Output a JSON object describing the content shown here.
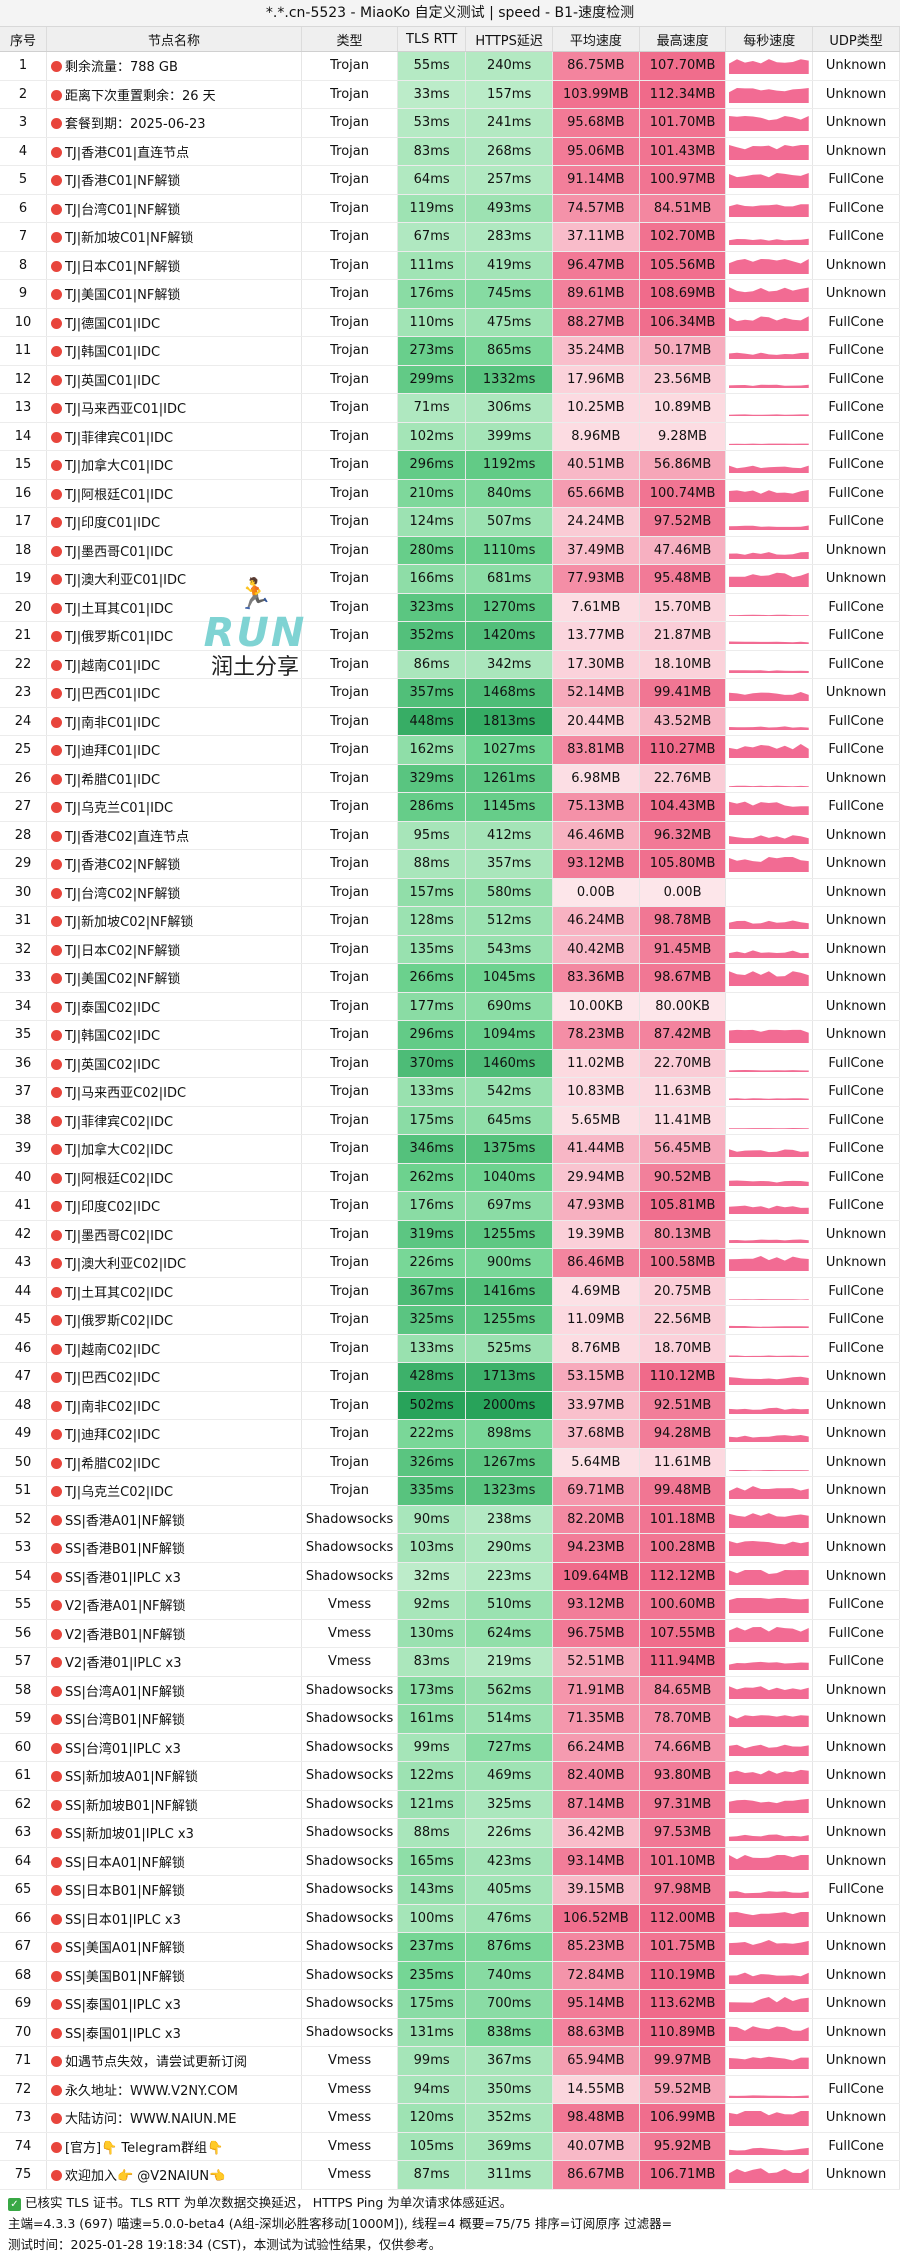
{
  "title": "*.*.cn-5523 - MiaoKo 自定义测试 | speed - B1-速度检测",
  "headers": [
    "序号",
    "节点名称",
    "类型",
    "TLS RTT",
    "HTTPS延迟",
    "平均速度",
    "最高速度",
    "每秒速度",
    "UDP类型"
  ],
  "colors": {
    "flag": "#e8453c",
    "ms_light": "#c8f0d2",
    "ms_mid": "#70d491",
    "ms_dark": "#28a35a",
    "spd_light": "#fde6ea",
    "spd_dark": "#f06a8a",
    "wave": "#f26b93"
  },
  "chart_data": {
    "type": "table",
    "columns": [
      "序号",
      "节点名称",
      "类型",
      "TLS RTT",
      "HTTPS延迟",
      "平均速度",
      "最高速度",
      "UDP类型"
    ],
    "rows": [
      [
        "1",
        "剩余流量：788 GB",
        "Trojan",
        "55ms",
        "240ms",
        "86.75MB",
        "107.70MB",
        "Unknown"
      ],
      [
        "2",
        "距离下次重置剩余：26 天",
        "Trojan",
        "33ms",
        "157ms",
        "103.99MB",
        "112.34MB",
        "Unknown"
      ],
      [
        "3",
        "套餐到期：2025-06-23",
        "Trojan",
        "53ms",
        "241ms",
        "95.68MB",
        "101.70MB",
        "Unknown"
      ],
      [
        "4",
        "TJ|香港C01|直连节点",
        "Trojan",
        "83ms",
        "268ms",
        "95.06MB",
        "101.43MB",
        "Unknown"
      ],
      [
        "5",
        "TJ|香港C01|NF解锁",
        "Trojan",
        "64ms",
        "257ms",
        "91.14MB",
        "100.97MB",
        "FullCone"
      ],
      [
        "6",
        "TJ|台湾C01|NF解锁",
        "Trojan",
        "119ms",
        "493ms",
        "74.57MB",
        "84.51MB",
        "FullCone"
      ],
      [
        "7",
        "TJ|新加坡C01|NF解锁",
        "Trojan",
        "67ms",
        "283ms",
        "37.11MB",
        "102.70MB",
        "FullCone"
      ],
      [
        "8",
        "TJ|日本C01|NF解锁",
        "Trojan",
        "111ms",
        "419ms",
        "96.47MB",
        "105.56MB",
        "Unknown"
      ],
      [
        "9",
        "TJ|美国C01|NF解锁",
        "Trojan",
        "176ms",
        "745ms",
        "89.61MB",
        "108.69MB",
        "Unknown"
      ],
      [
        "10",
        "TJ|德国C01|IDC",
        "Trojan",
        "110ms",
        "475ms",
        "88.27MB",
        "106.34MB",
        "FullCone"
      ],
      [
        "11",
        "TJ|韩国C01|IDC",
        "Trojan",
        "273ms",
        "865ms",
        "35.24MB",
        "50.17MB",
        "FullCone"
      ],
      [
        "12",
        "TJ|英国C01|IDC",
        "Trojan",
        "299ms",
        "1332ms",
        "17.96MB",
        "23.56MB",
        "FullCone"
      ],
      [
        "13",
        "TJ|马来西亚C01|IDC",
        "Trojan",
        "71ms",
        "306ms",
        "10.25MB",
        "10.89MB",
        "FullCone"
      ],
      [
        "14",
        "TJ|菲律宾C01|IDC",
        "Trojan",
        "102ms",
        "399ms",
        "8.96MB",
        "9.28MB",
        "FullCone"
      ],
      [
        "15",
        "TJ|加拿大C01|IDC",
        "Trojan",
        "296ms",
        "1192ms",
        "40.51MB",
        "56.86MB",
        "FullCone"
      ],
      [
        "16",
        "TJ|阿根廷C01|IDC",
        "Trojan",
        "210ms",
        "840ms",
        "65.66MB",
        "100.74MB",
        "FullCone"
      ],
      [
        "17",
        "TJ|印度C01|IDC",
        "Trojan",
        "124ms",
        "507ms",
        "24.24MB",
        "97.52MB",
        "FullCone"
      ],
      [
        "18",
        "TJ|墨西哥C01|IDC",
        "Trojan",
        "280ms",
        "1110ms",
        "37.49MB",
        "47.46MB",
        "Unknown"
      ],
      [
        "19",
        "TJ|澳大利亚C01|IDC",
        "Trojan",
        "166ms",
        "681ms",
        "77.93MB",
        "95.48MB",
        "Unknown"
      ],
      [
        "20",
        "TJ|土耳其C01|IDC",
        "Trojan",
        "323ms",
        "1270ms",
        "7.61MB",
        "15.70MB",
        "FullCone"
      ],
      [
        "21",
        "TJ|俄罗斯C01|IDC",
        "Trojan",
        "352ms",
        "1420ms",
        "13.77MB",
        "21.87MB",
        "FullCone"
      ],
      [
        "22",
        "TJ|越南C01|IDC",
        "Trojan",
        "86ms",
        "342ms",
        "17.30MB",
        "18.10MB",
        "FullCone"
      ],
      [
        "23",
        "TJ|巴西C01|IDC",
        "Trojan",
        "357ms",
        "1468ms",
        "52.14MB",
        "99.41MB",
        "Unknown"
      ],
      [
        "24",
        "TJ|南非C01|IDC",
        "Trojan",
        "448ms",
        "1813ms",
        "20.44MB",
        "43.52MB",
        "FullCone"
      ],
      [
        "25",
        "TJ|迪拜C01|IDC",
        "Trojan",
        "162ms",
        "1027ms",
        "83.81MB",
        "110.27MB",
        "FullCone"
      ],
      [
        "26",
        "TJ|希腊C01|IDC",
        "Trojan",
        "329ms",
        "1261ms",
        "6.98MB",
        "22.76MB",
        "Unknown"
      ],
      [
        "27",
        "TJ|乌克兰C01|IDC",
        "Trojan",
        "286ms",
        "1145ms",
        "75.13MB",
        "104.43MB",
        "FullCone"
      ],
      [
        "28",
        "TJ|香港C02|直连节点",
        "Trojan",
        "95ms",
        "412ms",
        "46.46MB",
        "96.32MB",
        "Unknown"
      ],
      [
        "29",
        "TJ|香港C02|NF解锁",
        "Trojan",
        "88ms",
        "357ms",
        "93.12MB",
        "105.80MB",
        "Unknown"
      ],
      [
        "30",
        "TJ|台湾C02|NF解锁",
        "Trojan",
        "157ms",
        "580ms",
        "0.00B",
        "0.00B",
        "Unknown"
      ],
      [
        "31",
        "TJ|新加坡C02|NF解锁",
        "Trojan",
        "128ms",
        "512ms",
        "46.24MB",
        "98.78MB",
        "Unknown"
      ],
      [
        "32",
        "TJ|日本C02|NF解锁",
        "Trojan",
        "135ms",
        "543ms",
        "40.42MB",
        "91.45MB",
        "Unknown"
      ],
      [
        "33",
        "TJ|美国C02|NF解锁",
        "Trojan",
        "266ms",
        "1045ms",
        "83.36MB",
        "98.67MB",
        "Unknown"
      ],
      [
        "34",
        "TJ|泰国C02|IDC",
        "Trojan",
        "177ms",
        "690ms",
        "10.00KB",
        "80.00KB",
        "Unknown"
      ],
      [
        "35",
        "TJ|韩国C02|IDC",
        "Trojan",
        "296ms",
        "1094ms",
        "78.23MB",
        "87.42MB",
        "Unknown"
      ],
      [
        "36",
        "TJ|英国C02|IDC",
        "Trojan",
        "370ms",
        "1460ms",
        "11.02MB",
        "22.70MB",
        "FullCone"
      ],
      [
        "37",
        "TJ|马来西亚C02|IDC",
        "Trojan",
        "133ms",
        "542ms",
        "10.83MB",
        "11.63MB",
        "FullCone"
      ],
      [
        "38",
        "TJ|菲律宾C02|IDC",
        "Trojan",
        "175ms",
        "645ms",
        "5.65MB",
        "11.41MB",
        "FullCone"
      ],
      [
        "39",
        "TJ|加拿大C02|IDC",
        "Trojan",
        "346ms",
        "1375ms",
        "41.44MB",
        "56.45MB",
        "FullCone"
      ],
      [
        "40",
        "TJ|阿根廷C02|IDC",
        "Trojan",
        "262ms",
        "1040ms",
        "29.94MB",
        "90.52MB",
        "FullCone"
      ],
      [
        "41",
        "TJ|印度C02|IDC",
        "Trojan",
        "176ms",
        "697ms",
        "47.93MB",
        "105.81MB",
        "FullCone"
      ],
      [
        "42",
        "TJ|墨西哥C02|IDC",
        "Trojan",
        "319ms",
        "1255ms",
        "19.39MB",
        "80.13MB",
        "Unknown"
      ],
      [
        "43",
        "TJ|澳大利亚C02|IDC",
        "Trojan",
        "226ms",
        "900ms",
        "86.46MB",
        "100.58MB",
        "Unknown"
      ],
      [
        "44",
        "TJ|土耳其C02|IDC",
        "Trojan",
        "367ms",
        "1416ms",
        "4.69MB",
        "20.75MB",
        "FullCone"
      ],
      [
        "45",
        "TJ|俄罗斯C02|IDC",
        "Trojan",
        "325ms",
        "1255ms",
        "11.09MB",
        "22.56MB",
        "FullCone"
      ],
      [
        "46",
        "TJ|越南C02|IDC",
        "Trojan",
        "133ms",
        "525ms",
        "8.76MB",
        "18.70MB",
        "FullCone"
      ],
      [
        "47",
        "TJ|巴西C02|IDC",
        "Trojan",
        "428ms",
        "1713ms",
        "53.15MB",
        "110.12MB",
        "Unknown"
      ],
      [
        "48",
        "TJ|南非C02|IDC",
        "Trojan",
        "502ms",
        "2000ms",
        "33.97MB",
        "92.51MB",
        "Unknown"
      ],
      [
        "49",
        "TJ|迪拜C02|IDC",
        "Trojan",
        "222ms",
        "898ms",
        "37.68MB",
        "94.28MB",
        "Unknown"
      ],
      [
        "50",
        "TJ|希腊C02|IDC",
        "Trojan",
        "326ms",
        "1267ms",
        "5.64MB",
        "11.61MB",
        "Unknown"
      ],
      [
        "51",
        "TJ|乌克兰C02|IDC",
        "Trojan",
        "335ms",
        "1323ms",
        "69.71MB",
        "99.48MB",
        "Unknown"
      ],
      [
        "52",
        "SS|香港A01|NF解锁",
        "Shadowsocks",
        "90ms",
        "238ms",
        "82.20MB",
        "101.18MB",
        "Unknown"
      ],
      [
        "53",
        "SS|香港B01|NF解锁",
        "Shadowsocks",
        "103ms",
        "290ms",
        "94.23MB",
        "100.28MB",
        "Unknown"
      ],
      [
        "54",
        "SS|香港01|IPLC x3",
        "Shadowsocks",
        "32ms",
        "223ms",
        "109.64MB",
        "112.12MB",
        "Unknown"
      ],
      [
        "55",
        "V2|香港A01|NF解锁",
        "Vmess",
        "92ms",
        "510ms",
        "93.12MB",
        "100.60MB",
        "FullCone"
      ],
      [
        "56",
        "V2|香港B01|NF解锁",
        "Vmess",
        "130ms",
        "624ms",
        "96.75MB",
        "107.55MB",
        "FullCone"
      ],
      [
        "57",
        "V2|香港01|IPLC x3",
        "Vmess",
        "83ms",
        "219ms",
        "52.51MB",
        "111.94MB",
        "FullCone"
      ],
      [
        "58",
        "SS|台湾A01|NF解锁",
        "Shadowsocks",
        "173ms",
        "562ms",
        "71.91MB",
        "84.65MB",
        "Unknown"
      ],
      [
        "59",
        "SS|台湾B01|NF解锁",
        "Shadowsocks",
        "161ms",
        "514ms",
        "71.35MB",
        "78.70MB",
        "Unknown"
      ],
      [
        "60",
        "SS|台湾01|IPLC x3",
        "Shadowsocks",
        "99ms",
        "727ms",
        "66.24MB",
        "74.66MB",
        "Unknown"
      ],
      [
        "61",
        "SS|新加坡A01|NF解锁",
        "Shadowsocks",
        "122ms",
        "469ms",
        "82.40MB",
        "93.80MB",
        "Unknown"
      ],
      [
        "62",
        "SS|新加坡B01|NF解锁",
        "Shadowsocks",
        "121ms",
        "325ms",
        "87.14MB",
        "97.31MB",
        "Unknown"
      ],
      [
        "63",
        "SS|新加坡01|IPLC x3",
        "Shadowsocks",
        "88ms",
        "226ms",
        "36.42MB",
        "97.53MB",
        "Unknown"
      ],
      [
        "64",
        "SS|日本A01|NF解锁",
        "Shadowsocks",
        "165ms",
        "423ms",
        "93.14MB",
        "101.10MB",
        "Unknown"
      ],
      [
        "65",
        "SS|日本B01|NF解锁",
        "Shadowsocks",
        "143ms",
        "405ms",
        "39.15MB",
        "97.98MB",
        "FullCone"
      ],
      [
        "66",
        "SS|日本01|IPLC x3",
        "Shadowsocks",
        "100ms",
        "476ms",
        "106.52MB",
        "112.00MB",
        "Unknown"
      ],
      [
        "67",
        "SS|美国A01|NF解锁",
        "Shadowsocks",
        "237ms",
        "876ms",
        "85.23MB",
        "101.75MB",
        "Unknown"
      ],
      [
        "68",
        "SS|美国B01|NF解锁",
        "Shadowsocks",
        "235ms",
        "740ms",
        "72.84MB",
        "110.19MB",
        "Unknown"
      ],
      [
        "69",
        "SS|泰国01|IPLC x3",
        "Shadowsocks",
        "175ms",
        "700ms",
        "95.14MB",
        "113.62MB",
        "Unknown"
      ],
      [
        "70",
        "SS|泰国01|IPLC x3",
        "Shadowsocks",
        "131ms",
        "838ms",
        "88.63MB",
        "110.89MB",
        "Unknown"
      ],
      [
        "71",
        "如遇节点失效，请尝试更新订阅",
        "Vmess",
        "99ms",
        "367ms",
        "65.94MB",
        "99.97MB",
        "Unknown"
      ],
      [
        "72",
        "永久地址：WWW.V2NY.COM",
        "Vmess",
        "94ms",
        "350ms",
        "14.55MB",
        "59.52MB",
        "FullCone"
      ],
      [
        "73",
        "大陆访问：WWW.NAIUN.ME",
        "Vmess",
        "120ms",
        "352ms",
        "98.48MB",
        "106.99MB",
        "Unknown"
      ],
      [
        "74",
        "[官方]👇 Telegram群组👇",
        "Vmess",
        "105ms",
        "369ms",
        "40.07MB",
        "95.92MB",
        "FullCone"
      ],
      [
        "75",
        "欢迎加入👉 @V2NAIUN👈",
        "Vmess",
        "87ms",
        "311ms",
        "86.67MB",
        "106.71MB",
        "Unknown"
      ]
    ]
  },
  "watermark": {
    "run": "RUN",
    "text": "润土分享",
    "icon": "runner-icon"
  },
  "footer": {
    "line1": "已核实 TLS 证书。TLS RTT 为单次数据交换延迟， HTTPS Ping 为单次请求体感延迟。",
    "line2": "主端=4.3.3 (697) 喵速=5.0.0-beta4 (A组-深圳必胜客移动[1000M]), 线程=4 概要=75/75 排序=订阅原序 过滤器=",
    "line3": "测试时间：2025-01-28 19:18:34 (CST)，本测试为试验性结果，仅供参考。"
  }
}
